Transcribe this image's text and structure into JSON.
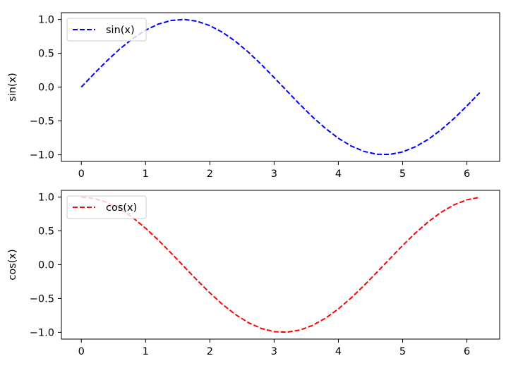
{
  "chart_data": [
    {
      "type": "line",
      "xlabel": "",
      "ylabel": "sin(x)",
      "xlim": [
        -0.31,
        6.51
      ],
      "ylim": [
        -1.1,
        1.1
      ],
      "xticks": [
        0,
        1,
        2,
        3,
        4,
        5,
        6
      ],
      "yticks": [
        -1.0,
        -0.5,
        0.0,
        0.5,
        1.0
      ],
      "xtick_labels": [
        "0",
        "1",
        "2",
        "3",
        "4",
        "5",
        "6"
      ],
      "ytick_labels": [
        "−1.0",
        "−0.5",
        "0.0",
        "0.5",
        "1.0"
      ],
      "legend": {
        "position": "upper-left"
      },
      "series": [
        {
          "name": "sin(x)",
          "color": "#0000ff",
          "linestyle": "dashed",
          "x": [
            0.0,
            0.2,
            0.4,
            0.6,
            0.8,
            1.0,
            1.2,
            1.4,
            1.6,
            1.8,
            2.0,
            2.2,
            2.4,
            2.6,
            2.8,
            3.0,
            3.2,
            3.4,
            3.6,
            3.8,
            4.0,
            4.2,
            4.4,
            4.6,
            4.8,
            5.0,
            5.2,
            5.4,
            5.6,
            5.8,
            6.0,
            6.2
          ],
          "y": [
            0.0,
            0.199,
            0.389,
            0.565,
            0.717,
            0.841,
            0.932,
            0.985,
            1.0,
            0.974,
            0.909,
            0.808,
            0.675,
            0.516,
            0.335,
            0.141,
            -0.058,
            -0.256,
            -0.443,
            -0.612,
            -0.757,
            -0.872,
            -0.952,
            -0.994,
            -0.996,
            -0.959,
            -0.883,
            -0.773,
            -0.631,
            -0.465,
            -0.279,
            -0.083
          ]
        }
      ]
    },
    {
      "type": "line",
      "xlabel": "",
      "ylabel": "cos(x)",
      "xlim": [
        -0.31,
        6.51
      ],
      "ylim": [
        -1.1,
        1.1
      ],
      "xticks": [
        0,
        1,
        2,
        3,
        4,
        5,
        6
      ],
      "yticks": [
        -1.0,
        -0.5,
        0.0,
        0.5,
        1.0
      ],
      "xtick_labels": [
        "0",
        "1",
        "2",
        "3",
        "4",
        "5",
        "6"
      ],
      "ytick_labels": [
        "−1.0",
        "−0.5",
        "0.0",
        "0.5",
        "1.0"
      ],
      "legend": {
        "position": "upper-left"
      },
      "series": [
        {
          "name": "cos(x)",
          "color": "#ff0000",
          "linestyle": "dashed",
          "x": [
            0.0,
            0.2,
            0.4,
            0.6,
            0.8,
            1.0,
            1.2,
            1.4,
            1.6,
            1.8,
            2.0,
            2.2,
            2.4,
            2.6,
            2.8,
            3.0,
            3.2,
            3.4,
            3.6,
            3.8,
            4.0,
            4.2,
            4.4,
            4.6,
            4.8,
            5.0,
            5.2,
            5.4,
            5.6,
            5.8,
            6.0,
            6.2
          ],
          "y": [
            1.0,
            0.98,
            0.921,
            0.825,
            0.697,
            0.54,
            0.362,
            0.17,
            -0.029,
            -0.227,
            -0.416,
            -0.589,
            -0.737,
            -0.857,
            -0.942,
            -0.99,
            -0.998,
            -0.967,
            -0.897,
            -0.791,
            -0.654,
            -0.49,
            -0.307,
            -0.112,
            0.087,
            0.284,
            0.469,
            0.635,
            0.776,
            0.886,
            0.96,
            0.997
          ]
        }
      ]
    }
  ]
}
